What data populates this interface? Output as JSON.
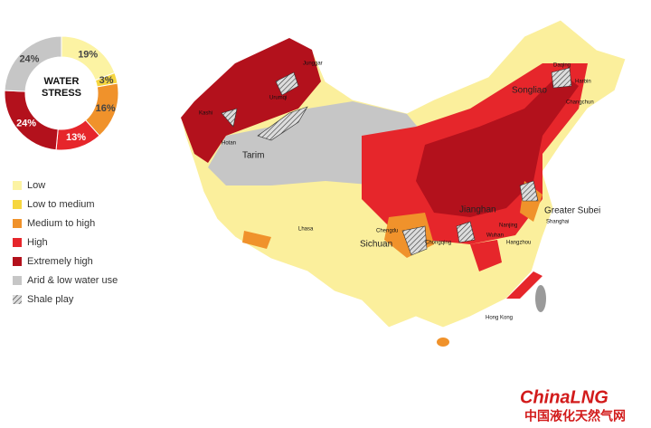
{
  "chart_data": {
    "type": "donut",
    "title": "WATER STRESS",
    "categories": [
      "Low",
      "Low to medium",
      "Medium to high",
      "High",
      "Extremely high",
      "Arid & low water use"
    ],
    "values": [
      19,
      3,
      16,
      13,
      24,
      24
    ],
    "value_labels": [
      "19%",
      "3%",
      "16%",
      "13%",
      "24%",
      "24%"
    ],
    "colors": [
      "#fcf3a3",
      "#f6d63f",
      "#f0922b",
      "#e6262b",
      "#b3111c",
      "#c6c6c6"
    ]
  },
  "map": {
    "shale_label": "Shale play",
    "places": [
      "Junggar",
      "Urumqi",
      "Kashi",
      "Hotan",
      "Tarim",
      "Lhasa",
      "Songliao",
      "Daqing",
      "Harbin",
      "Changchun",
      "Sichuan",
      "Chengdu",
      "Chongqing",
      "Jianghan",
      "Wuhan",
      "Nanjing",
      "Shanghai",
      "Hangzhou",
      "Greater Subei",
      "Hong Kong"
    ]
  },
  "branding": {
    "logo": "ChinaLNG",
    "tagline": "中国液化天然气网"
  }
}
